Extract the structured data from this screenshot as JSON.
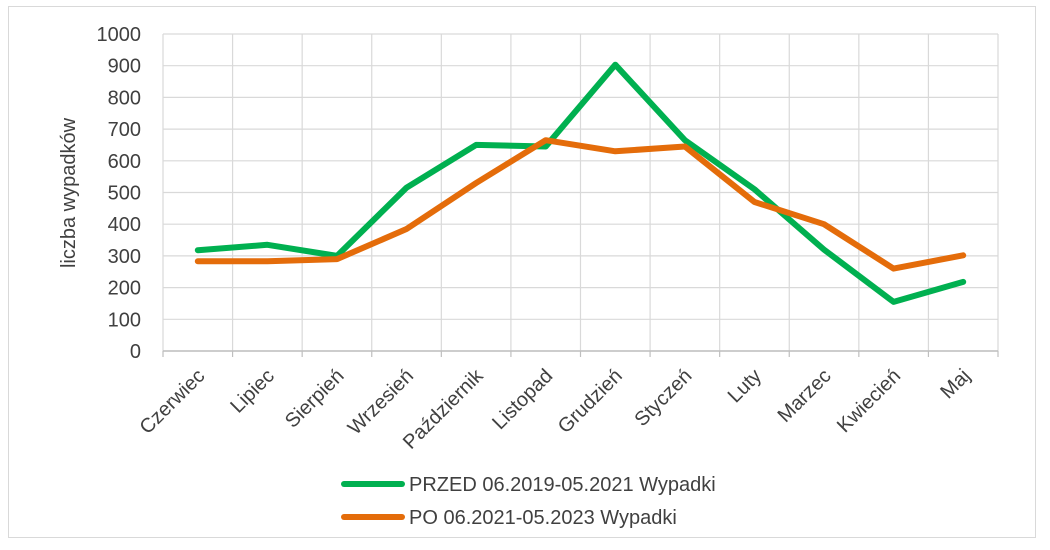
{
  "chart_data": {
    "type": "line",
    "title": "",
    "xlabel": "",
    "ylabel": "liczba wypadków",
    "ylim": [
      0,
      1000
    ],
    "yticks": [
      0,
      100,
      200,
      300,
      400,
      500,
      600,
      700,
      800,
      900,
      1000
    ],
    "grid": true,
    "legend_position": "bottom",
    "categories": [
      "Czerwiec",
      "Lipiec",
      "Sierpień",
      "Wrzesień",
      "Październik",
      "Listopad",
      "Grudzień",
      "Styczeń",
      "Luty",
      "Marzec",
      "Kwiecień",
      "Maj"
    ],
    "series": [
      {
        "name": "PRZED 06.2019-05.2021 Wypadki",
        "color": "#00b050",
        "values": [
          318,
          335,
          300,
          515,
          650,
          645,
          903,
          665,
          510,
          320,
          155,
          218
        ]
      },
      {
        "name": "PO 06.2021-05.2023 Wypadki",
        "color": "#e46c0a",
        "values": [
          283,
          283,
          290,
          385,
          530,
          665,
          630,
          645,
          470,
          400,
          260,
          302
        ]
      }
    ]
  }
}
